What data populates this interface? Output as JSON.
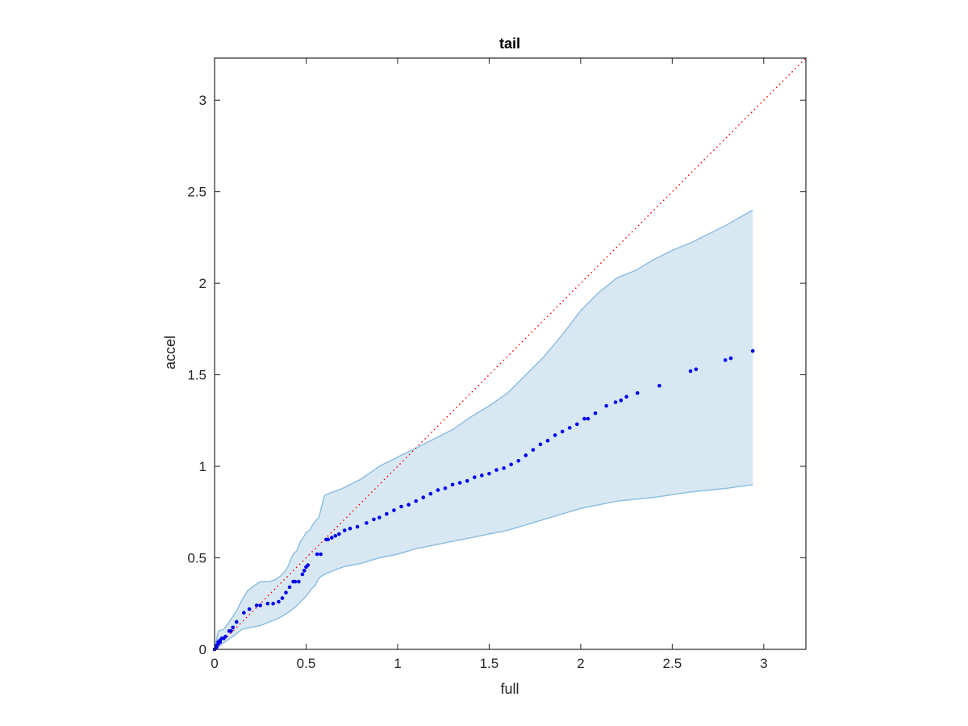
{
  "chart_data": {
    "type": "scatter",
    "title": "tail",
    "xlabel": "full",
    "ylabel": "accel",
    "xlim": [
      0,
      3.23
    ],
    "ylim": [
      0,
      3.23
    ],
    "x_ticks": [
      0,
      0.5,
      1,
      1.5,
      2,
      2.5,
      3
    ],
    "y_ticks": [
      0,
      0.5,
      1,
      1.5,
      2,
      2.5,
      3
    ],
    "x_tick_labels": [
      "0",
      "0.5",
      "1",
      "1.5",
      "2",
      "2.5",
      "3"
    ],
    "y_tick_labels": [
      "0",
      "0.5",
      "1",
      "1.5",
      "2",
      "2.5",
      "3"
    ],
    "grid": false,
    "colors": {
      "points": "#0000ee",
      "band_fill": "#d8e8f3",
      "band_edge": "#8fbfe0",
      "reference_line": "#ff0000",
      "axes": "#262626"
    },
    "reference_line": {
      "style": "dotted",
      "points": [
        [
          0,
          0
        ],
        [
          3.23,
          3.23
        ]
      ]
    },
    "band": {
      "upper": [
        [
          0,
          0
        ],
        [
          0.02,
          0.1
        ],
        [
          0.05,
          0.11
        ],
        [
          0.08,
          0.15
        ],
        [
          0.12,
          0.21
        ],
        [
          0.15,
          0.27
        ],
        [
          0.18,
          0.32
        ],
        [
          0.22,
          0.35
        ],
        [
          0.25,
          0.37
        ],
        [
          0.3,
          0.37
        ],
        [
          0.33,
          0.38
        ],
        [
          0.36,
          0.4
        ],
        [
          0.38,
          0.42
        ],
        [
          0.4,
          0.45
        ],
        [
          0.42,
          0.5
        ],
        [
          0.43,
          0.52
        ],
        [
          0.45,
          0.54
        ],
        [
          0.47,
          0.59
        ],
        [
          0.49,
          0.62
        ],
        [
          0.5,
          0.64
        ],
        [
          0.52,
          0.65
        ],
        [
          0.53,
          0.67
        ],
        [
          0.55,
          0.7
        ],
        [
          0.57,
          0.72
        ],
        [
          0.59,
          0.8
        ],
        [
          0.6,
          0.84
        ],
        [
          0.62,
          0.85
        ],
        [
          0.7,
          0.88
        ],
        [
          0.8,
          0.93
        ],
        [
          0.9,
          1.0
        ],
        [
          1.0,
          1.05
        ],
        [
          1.1,
          1.1
        ],
        [
          1.2,
          1.15
        ],
        [
          1.3,
          1.2
        ],
        [
          1.4,
          1.27
        ],
        [
          1.5,
          1.33
        ],
        [
          1.6,
          1.4
        ],
        [
          1.7,
          1.5
        ],
        [
          1.8,
          1.6
        ],
        [
          1.9,
          1.72
        ],
        [
          2.0,
          1.85
        ],
        [
          2.1,
          1.95
        ],
        [
          2.2,
          2.03
        ],
        [
          2.3,
          2.07
        ],
        [
          2.4,
          2.13
        ],
        [
          2.5,
          2.18
        ],
        [
          2.6,
          2.22
        ],
        [
          2.7,
          2.27
        ],
        [
          2.8,
          2.32
        ],
        [
          2.94,
          2.4
        ]
      ],
      "lower": [
        [
          2.94,
          0.9
        ],
        [
          2.8,
          0.88
        ],
        [
          2.6,
          0.86
        ],
        [
          2.4,
          0.83
        ],
        [
          2.2,
          0.81
        ],
        [
          2.0,
          0.77
        ],
        [
          1.9,
          0.74
        ],
        [
          1.8,
          0.71
        ],
        [
          1.7,
          0.68
        ],
        [
          1.6,
          0.65
        ],
        [
          1.5,
          0.63
        ],
        [
          1.4,
          0.61
        ],
        [
          1.3,
          0.59
        ],
        [
          1.2,
          0.57
        ],
        [
          1.1,
          0.55
        ],
        [
          1.0,
          0.52
        ],
        [
          0.9,
          0.5
        ],
        [
          0.8,
          0.47
        ],
        [
          0.7,
          0.45
        ],
        [
          0.65,
          0.43
        ],
        [
          0.6,
          0.41
        ],
        [
          0.57,
          0.39
        ],
        [
          0.55,
          0.35
        ],
        [
          0.53,
          0.33
        ],
        [
          0.5,
          0.29
        ],
        [
          0.47,
          0.26
        ],
        [
          0.44,
          0.23
        ],
        [
          0.4,
          0.2
        ],
        [
          0.35,
          0.17
        ],
        [
          0.3,
          0.15
        ],
        [
          0.25,
          0.13
        ],
        [
          0.2,
          0.12
        ],
        [
          0.15,
          0.11
        ],
        [
          0.1,
          0.07
        ],
        [
          0.07,
          0.05
        ],
        [
          0.04,
          0.03
        ],
        [
          0.02,
          0.01
        ],
        [
          0,
          0
        ]
      ]
    },
    "series": [
      {
        "x": [
          0.0,
          0.01,
          0.01,
          0.02,
          0.02,
          0.03,
          0.03,
          0.04,
          0.05,
          0.06,
          0.08,
          0.09,
          0.1,
          0.12,
          0.16,
          0.19,
          0.23,
          0.25,
          0.29,
          0.32,
          0.35,
          0.37,
          0.39,
          0.41,
          0.43,
          0.44,
          0.46,
          0.48,
          0.49,
          0.5,
          0.51,
          0.56,
          0.58,
          0.61,
          0.62,
          0.64,
          0.66,
          0.68,
          0.71,
          0.74,
          0.78,
          0.83,
          0.87,
          0.9,
          0.94,
          0.98,
          1.02,
          1.06,
          1.1,
          1.14,
          1.18,
          1.22,
          1.26,
          1.3,
          1.34,
          1.38,
          1.42,
          1.46,
          1.5,
          1.54,
          1.58,
          1.62,
          1.66,
          1.7,
          1.74,
          1.78,
          1.82,
          1.86,
          1.9,
          1.94,
          1.98,
          2.02,
          2.04,
          2.08,
          2.14,
          2.19,
          2.22,
          2.25,
          2.31,
          2.43,
          2.6,
          2.63,
          2.79,
          2.82,
          2.94
        ],
        "y": [
          0.0,
          0.01,
          0.02,
          0.03,
          0.04,
          0.04,
          0.05,
          0.06,
          0.06,
          0.07,
          0.1,
          0.1,
          0.12,
          0.15,
          0.2,
          0.22,
          0.24,
          0.24,
          0.25,
          0.25,
          0.26,
          0.28,
          0.31,
          0.34,
          0.37,
          0.37,
          0.37,
          0.41,
          0.43,
          0.45,
          0.46,
          0.52,
          0.52,
          0.6,
          0.6,
          0.61,
          0.62,
          0.63,
          0.65,
          0.66,
          0.67,
          0.69,
          0.71,
          0.72,
          0.74,
          0.76,
          0.78,
          0.79,
          0.81,
          0.83,
          0.85,
          0.87,
          0.88,
          0.9,
          0.91,
          0.92,
          0.94,
          0.95,
          0.96,
          0.98,
          0.99,
          1.01,
          1.03,
          1.06,
          1.09,
          1.12,
          1.14,
          1.17,
          1.19,
          1.21,
          1.23,
          1.26,
          1.26,
          1.29,
          1.33,
          1.35,
          1.36,
          1.38,
          1.4,
          1.44,
          1.52,
          1.53,
          1.58,
          1.59,
          1.63
        ]
      }
    ]
  }
}
